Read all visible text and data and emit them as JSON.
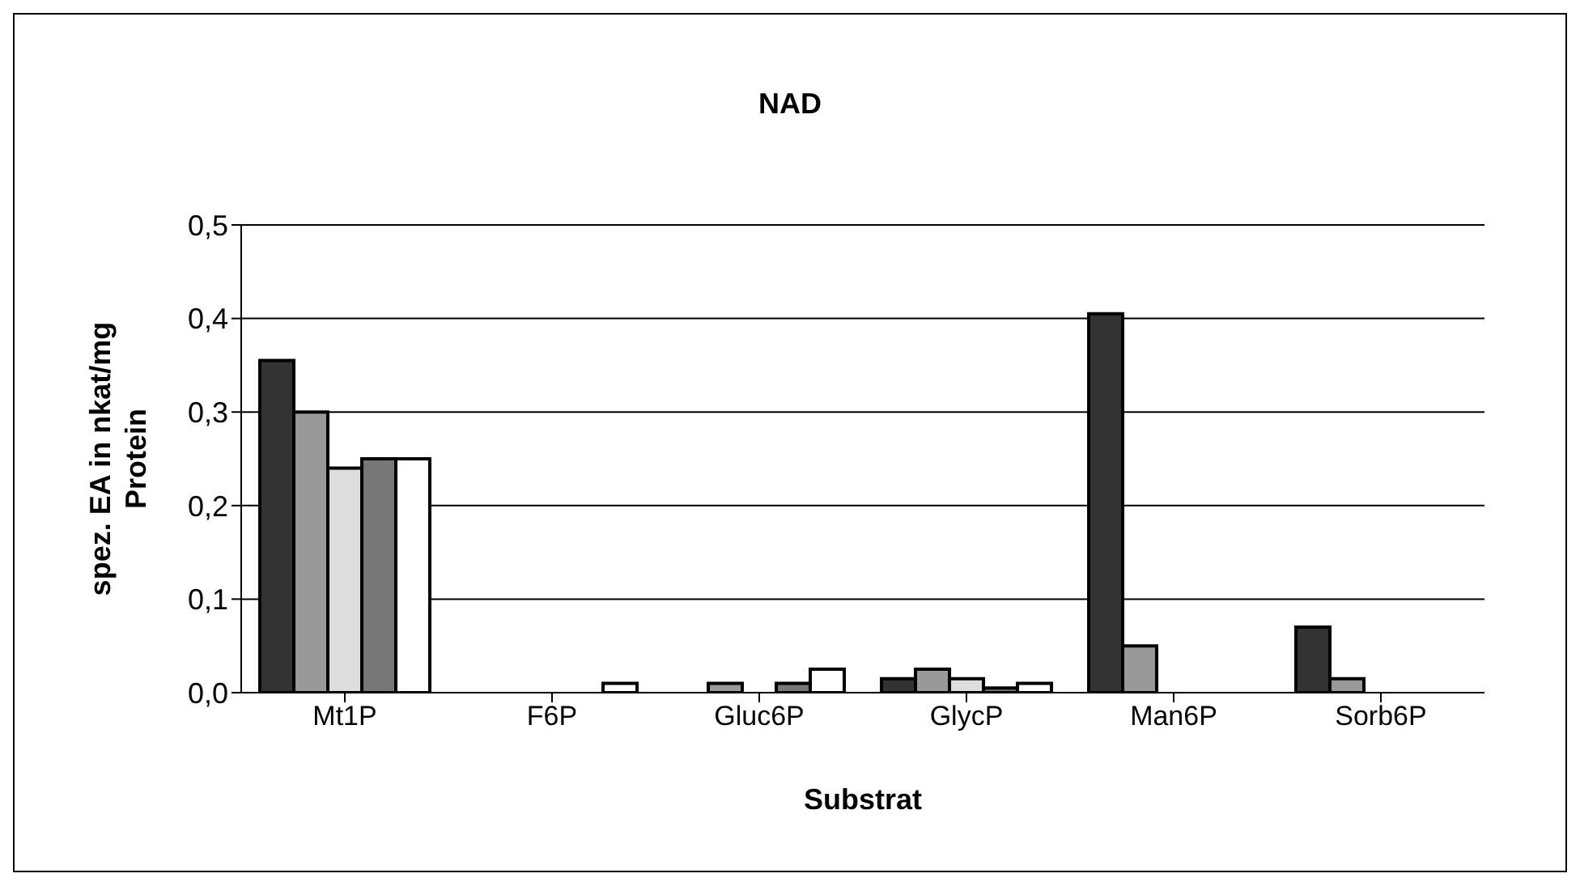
{
  "chart_data": {
    "type": "bar",
    "title": "NAD",
    "xlabel": "Substrat",
    "ylabel": "spez. EA in nkat/mg Protein",
    "categories": [
      "Mt1P",
      "F6P",
      "Gluc6P",
      "GlycP",
      "Man6P",
      "Sorb6P"
    ],
    "series": [
      {
        "color": "#333333",
        "values": [
          0.355,
          0,
          0,
          0.015,
          0.405,
          0.07
        ]
      },
      {
        "color": "#999999",
        "values": [
          0.3,
          0,
          0.01,
          0.025,
          0.05,
          0.015
        ]
      },
      {
        "color": "#dddddd",
        "values": [
          0.24,
          0,
          0,
          0.015,
          0,
          0
        ]
      },
      {
        "color": "#777777",
        "values": [
          0.25,
          0,
          0.01,
          0.005,
          0,
          0
        ]
      },
      {
        "color": "#ffffff",
        "values": [
          0.25,
          0.01,
          0.025,
          0.01,
          0,
          0
        ]
      }
    ],
    "ylim": [
      0,
      0.5
    ],
    "yticks": [
      {
        "value": 0,
        "label": "0,0"
      },
      {
        "value": 0.1,
        "label": "0,1"
      },
      {
        "value": 0.2,
        "label": "0,2"
      },
      {
        "value": 0.3,
        "label": "0,3"
      },
      {
        "value": 0.4,
        "label": "0,4"
      },
      {
        "value": 0.5,
        "label": "0,5"
      }
    ],
    "grid": "y",
    "legend": false
  }
}
